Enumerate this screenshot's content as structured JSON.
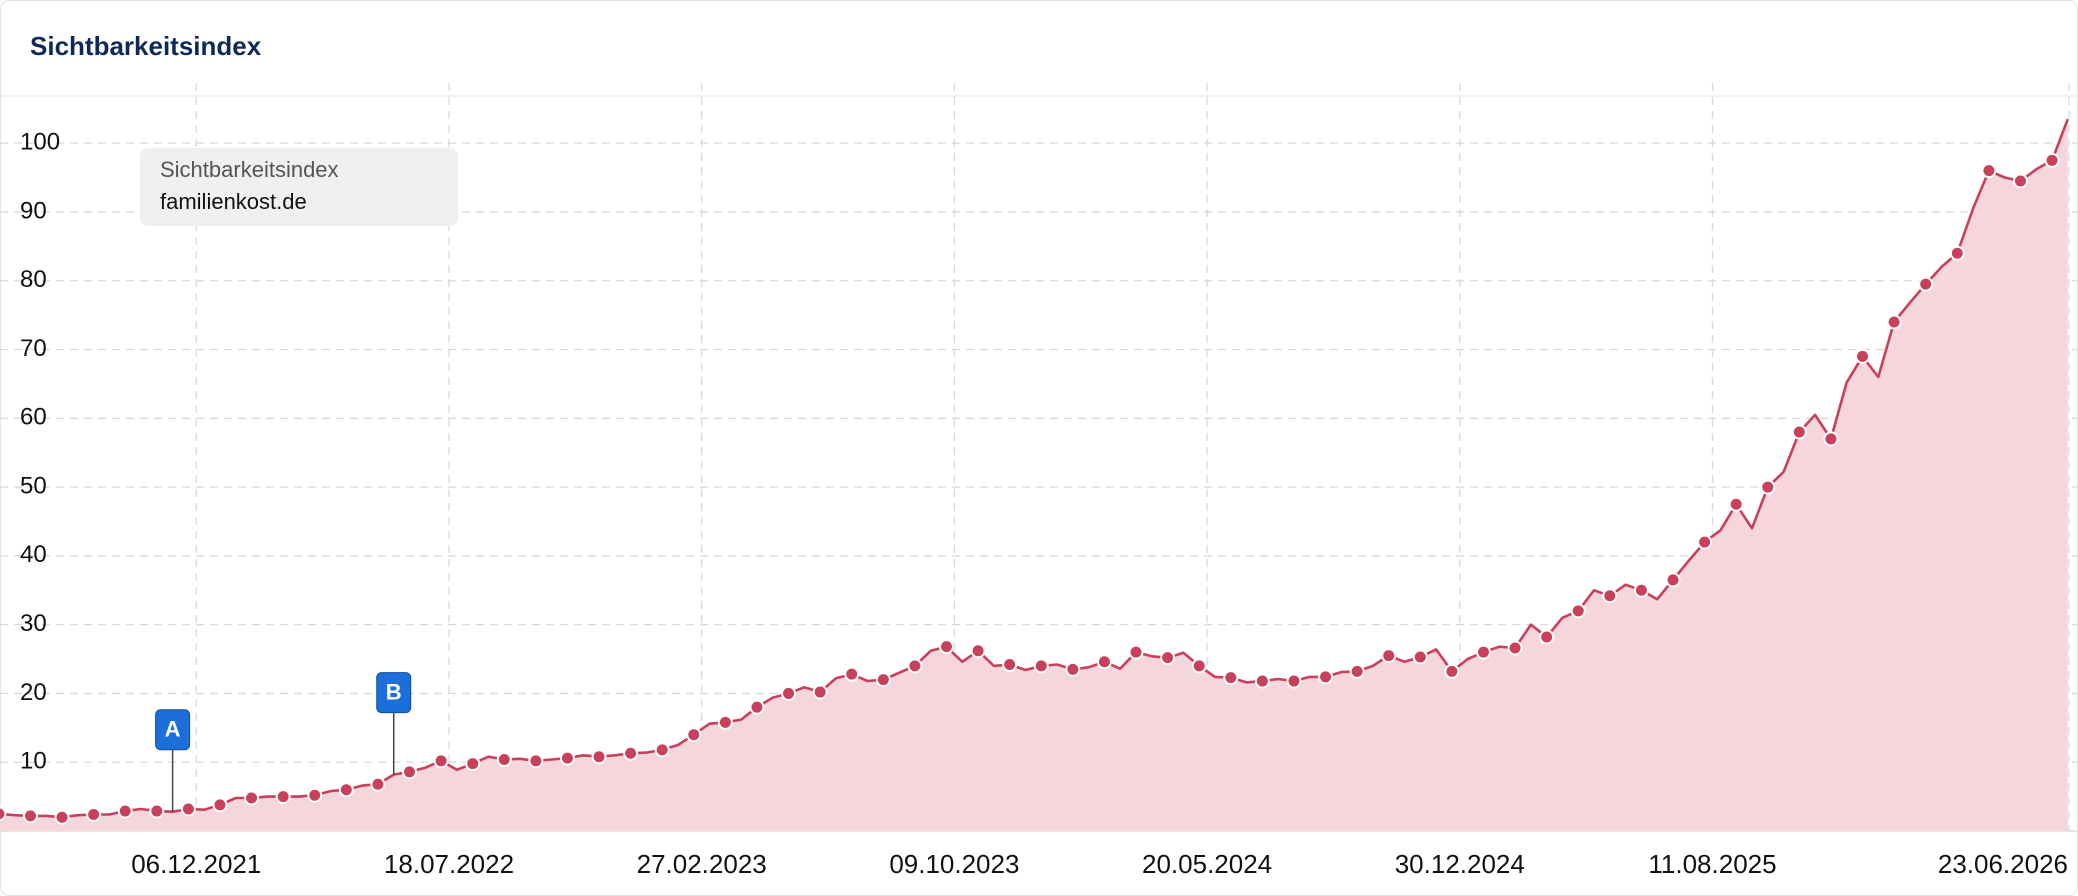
{
  "chart_data": {
    "type": "area",
    "title": "Sichtbarkeitsindex",
    "legend_title": "Sichtbarkeitsindex",
    "x": [
      "2021-06-14",
      "2021-06-28",
      "2021-07-12",
      "2021-07-26",
      "2021-08-09",
      "2021-08-23",
      "2021-09-06",
      "2021-09-20",
      "2021-10-04",
      "2021-10-18",
      "2021-11-01",
      "2021-11-15",
      "2021-11-29",
      "2021-12-13",
      "2021-12-27",
      "2022-01-10",
      "2022-01-24",
      "2022-02-07",
      "2022-02-21",
      "2022-03-07",
      "2022-03-21",
      "2022-04-04",
      "2022-04-18",
      "2022-05-02",
      "2022-05-16",
      "2022-05-30",
      "2022-06-13",
      "2022-06-27",
      "2022-07-11",
      "2022-07-25",
      "2022-08-08",
      "2022-08-22",
      "2022-09-05",
      "2022-09-19",
      "2022-10-03",
      "2022-10-17",
      "2022-10-31",
      "2022-11-14",
      "2022-11-28",
      "2022-12-12",
      "2022-12-26",
      "2023-01-09",
      "2023-01-23",
      "2023-02-06",
      "2023-02-20",
      "2023-03-06",
      "2023-03-20",
      "2023-04-03",
      "2023-04-17",
      "2023-05-01",
      "2023-05-15",
      "2023-05-29",
      "2023-06-12",
      "2023-06-26",
      "2023-07-10",
      "2023-07-24",
      "2023-08-07",
      "2023-08-21",
      "2023-09-04",
      "2023-09-18",
      "2023-10-02",
      "2023-10-16",
      "2023-10-30",
      "2023-11-13",
      "2023-11-27",
      "2023-12-11",
      "2023-12-25",
      "2024-01-08",
      "2024-01-22",
      "2024-02-05",
      "2024-02-19",
      "2024-03-04",
      "2024-03-18",
      "2024-04-01",
      "2024-04-15",
      "2024-04-29",
      "2024-05-13",
      "2024-05-27",
      "2024-06-10",
      "2024-06-24",
      "2024-07-08",
      "2024-07-22",
      "2024-08-05",
      "2024-08-19",
      "2024-09-02",
      "2024-09-16",
      "2024-09-30",
      "2024-10-14",
      "2024-10-28",
      "2024-11-11",
      "2024-11-25",
      "2024-12-09",
      "2024-12-23",
      "2025-01-06",
      "2025-01-20",
      "2025-02-03",
      "2025-02-17",
      "2025-03-03",
      "2025-03-17",
      "2025-03-31",
      "2025-04-14",
      "2025-04-28",
      "2025-05-12",
      "2025-05-26",
      "2025-06-09",
      "2025-06-23",
      "2025-07-07",
      "2025-07-21",
      "2025-08-04",
      "2025-08-18",
      "2025-09-01",
      "2025-09-15",
      "2025-09-29",
      "2025-10-13",
      "2025-10-27",
      "2025-11-10",
      "2025-11-24",
      "2025-12-08",
      "2025-12-22",
      "2026-01-05",
      "2026-01-19",
      "2026-02-02",
      "2026-02-16",
      "2026-03-02",
      "2026-03-16",
      "2026-03-30",
      "2026-04-13",
      "2026-04-27",
      "2026-05-11",
      "2026-05-25",
      "2026-06-08",
      "2026-06-22"
    ],
    "series": [
      {
        "name": "familienkost.de",
        "color": "#c8405a",
        "fill": "#f5d6dd",
        "values": [
          2.5,
          2.3,
          2.2,
          2.2,
          2.0,
          2.3,
          2.4,
          2.4,
          2.9,
          3.2,
          2.9,
          2.8,
          3.2,
          3.1,
          3.8,
          4.8,
          4.8,
          5.0,
          5.0,
          5.0,
          5.2,
          5.8,
          6.0,
          6.6,
          6.8,
          8.2,
          8.6,
          9.2,
          10.2,
          8.9,
          9.8,
          10.8,
          10.4,
          10.5,
          10.2,
          10.4,
          10.6,
          11.0,
          10.8,
          11.0,
          11.3,
          11.4,
          11.8,
          12.5,
          14.0,
          15.6,
          15.8,
          16.2,
          18.0,
          19.4,
          20.0,
          20.9,
          20.2,
          22.2,
          22.8,
          21.8,
          22.0,
          23.0,
          24.0,
          26.2,
          26.8,
          24.6,
          26.2,
          24.0,
          24.2,
          23.4,
          24.0,
          24.2,
          23.5,
          23.8,
          24.6,
          23.6,
          26.0,
          25.4,
          25.2,
          25.9,
          24.0,
          22.4,
          22.3,
          21.6,
          21.8,
          22.1,
          21.8,
          22.4,
          22.4,
          23.1,
          23.2,
          24.0,
          25.5,
          24.6,
          25.3,
          26.4,
          23.2,
          25.0,
          26.0,
          26.8,
          26.6,
          30.0,
          28.2,
          31.0,
          32.0,
          35.0,
          34.2,
          35.8,
          35.0,
          33.7,
          36.5,
          39.3,
          42.0,
          43.7,
          47.5,
          44.0,
          50.0,
          52.2,
          58.0,
          60.5,
          57.0,
          65.2,
          69.0,
          66.0,
          74.0,
          76.8,
          79.5,
          82.0,
          84.0,
          90.5,
          96.0,
          95.0,
          94.5,
          96.2,
          97.5,
          103.5
        ]
      }
    ],
    "annotations": [
      {
        "text": "A",
        "x": "2021-11-15"
      },
      {
        "text": "B",
        "x": "2022-05-30"
      }
    ],
    "xlim": [
      "2021-06-15",
      "2026-07-01"
    ],
    "xticks": [
      {
        "value": "2021-12-06",
        "label": "06.12.2021"
      },
      {
        "value": "2022-07-18",
        "label": "18.07.2022"
      },
      {
        "value": "2023-02-27",
        "label": "27.02.2023"
      },
      {
        "value": "2023-10-09",
        "label": "09.10.2023"
      },
      {
        "value": "2024-05-20",
        "label": "20.05.2024"
      },
      {
        "value": "2024-12-30",
        "label": "30.12.2024"
      },
      {
        "value": "2025-08-11",
        "label": "11.08.2025"
      },
      {
        "value": "2026-06-23",
        "label": "23.06.2026"
      }
    ],
    "ylim": [
      0,
      107
    ],
    "yticks": [
      10,
      20,
      30,
      40,
      50,
      60,
      70,
      80,
      90,
      100
    ],
    "grid": true
  }
}
